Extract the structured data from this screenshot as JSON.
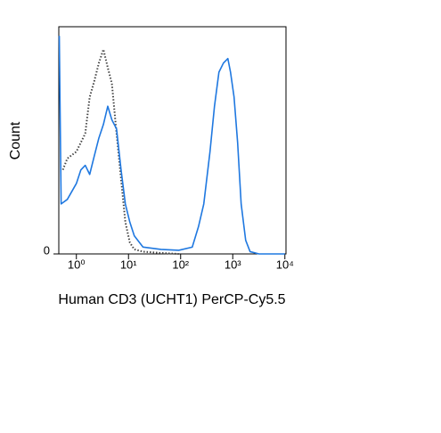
{
  "chart_data": {
    "type": "line",
    "xlabel": "Human CD3 (UCHT1) PerCP-Cy5.5",
    "ylabel": "Count",
    "xscale": "log",
    "xlim": [
      0.46,
      10500
    ],
    "ylim": [
      0,
      100
    ],
    "xticks": [
      {
        "value": 1,
        "label": "10⁰"
      },
      {
        "value": 10,
        "label": "10¹"
      },
      {
        "value": 100,
        "label": "10²"
      },
      {
        "value": 1000,
        "label": "10³"
      },
      {
        "value": 10000,
        "label": "10⁴"
      }
    ],
    "yticks": [
      0
    ],
    "series": [
      {
        "color": "#444444",
        "style": "dotted",
        "x": [
          0.55,
          0.67,
          1,
          1.48,
          1.8,
          2.2,
          2.7,
          3.3,
          4.0,
          4.8,
          5.9,
          7.2,
          8.7,
          10.6,
          12.9,
          19,
          42,
          92
        ],
        "values": [
          37,
          42,
          45,
          53,
          69,
          76,
          84,
          90,
          82,
          75,
          53,
          33,
          14,
          5,
          2,
          1,
          0.4,
          0
        ]
      },
      {
        "color": "#1f78e0",
        "style": "solid",
        "x": [
          0.47,
          0.51,
          0.67,
          1,
          1.22,
          1.48,
          1.8,
          2.2,
          2.7,
          3.3,
          4.0,
          4.8,
          5.9,
          7.2,
          8.7,
          10.6,
          12.9,
          19,
          42,
          92,
          167,
          220,
          278,
          366,
          446,
          543,
          662,
          805,
          906,
          1060,
          1240,
          1450,
          1770,
          2150,
          3190,
          10000
        ],
        "values": [
          96,
          22,
          24,
          31,
          37,
          39,
          35,
          43,
          51,
          57,
          65,
          59,
          55,
          37,
          22,
          14,
          8,
          3,
          2,
          1.6,
          3,
          12,
          22,
          45,
          65,
          80,
          84,
          86,
          80,
          69,
          49,
          22,
          6,
          1,
          0,
          0
        ]
      }
    ]
  }
}
